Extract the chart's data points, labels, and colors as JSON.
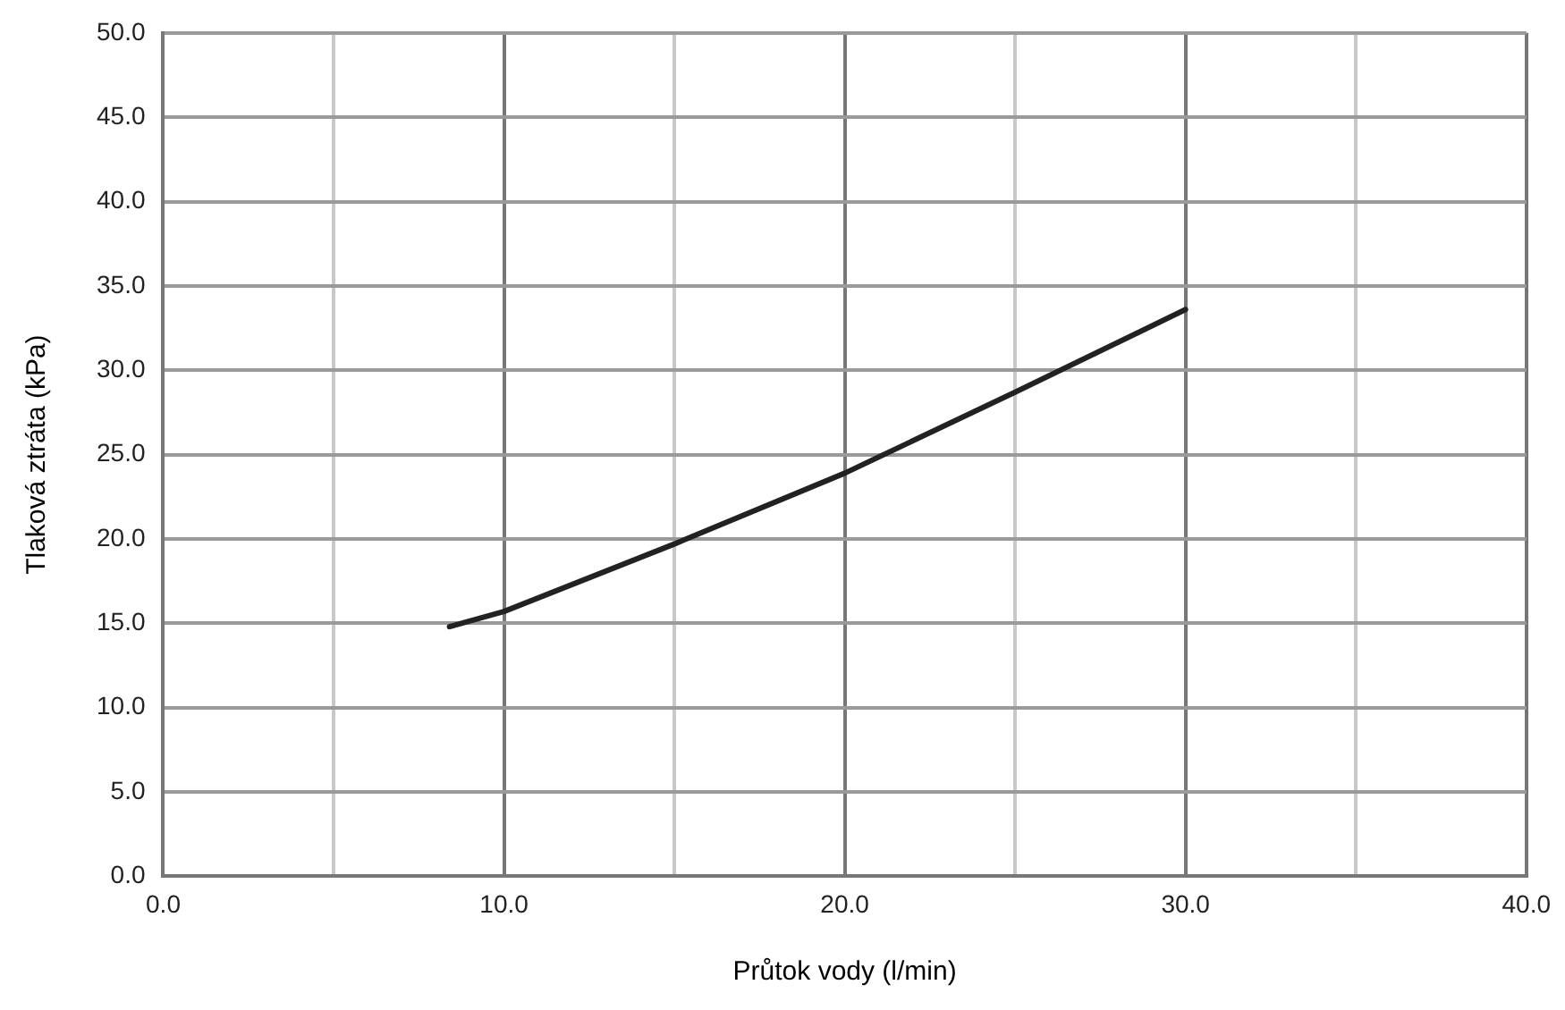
{
  "chart_data": {
    "type": "line",
    "xlabel": "Průtok vody (l/min)",
    "ylabel": "Tlaková ztráta (kPa)",
    "x": [
      8.4,
      10.0,
      15.0,
      20.0,
      25.0,
      30.0
    ],
    "values": [
      14.8,
      15.7,
      19.7,
      23.9,
      28.7,
      33.6
    ],
    "color": "#222222",
    "xlim": [
      0,
      40
    ],
    "ylim": [
      0,
      50
    ],
    "xticks": [
      {
        "value": 0,
        "label": "0.0"
      },
      {
        "value": 5,
        "label": null
      },
      {
        "value": 10,
        "label": "10.0"
      },
      {
        "value": 15,
        "label": null
      },
      {
        "value": 20,
        "label": "20.0"
      },
      {
        "value": 25,
        "label": null
      },
      {
        "value": 30,
        "label": "30.0"
      },
      {
        "value": 35,
        "label": null
      },
      {
        "value": 40,
        "label": "40.0"
      }
    ],
    "yticks": [
      {
        "value": 0,
        "label": "0.0"
      },
      {
        "value": 5,
        "label": "5.0"
      },
      {
        "value": 10,
        "label": "10.0"
      },
      {
        "value": 15,
        "label": "15.0"
      },
      {
        "value": 20,
        "label": "20.0"
      },
      {
        "value": 25,
        "label": "25.0"
      },
      {
        "value": 30,
        "label": "30.0"
      },
      {
        "value": 35,
        "label": "35.0"
      },
      {
        "value": 40,
        "label": "40.0"
      },
      {
        "value": 45,
        "label": "45.0"
      },
      {
        "value": 50,
        "label": "50.0"
      }
    ],
    "grid": true
  }
}
